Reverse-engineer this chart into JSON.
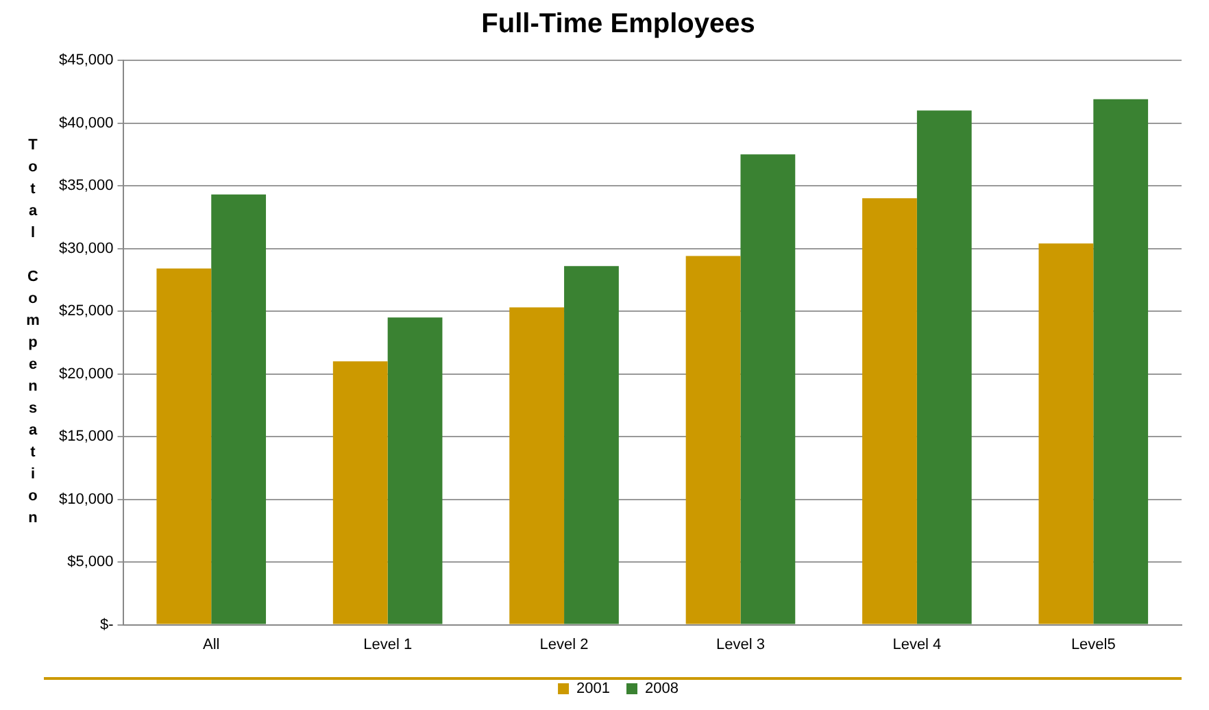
{
  "chart_data": {
    "type": "bar",
    "title": "Full-Time Employees",
    "ylabel": "Total Compensation",
    "categories": [
      "All",
      "Level 1",
      "Level 2",
      "Level 3",
      "Level 4",
      "Level5"
    ],
    "series": [
      {
        "name": "2001",
        "color": "#cc9900",
        "values": [
          28400,
          21000,
          25300,
          29400,
          34000,
          30400
        ]
      },
      {
        "name": "2008",
        "color": "#3a8232",
        "values": [
          34300,
          24500,
          28600,
          37500,
          41000,
          41900
        ]
      }
    ],
    "ylim": [
      0,
      45000
    ],
    "yticks": [
      {
        "value": 0,
        "label": "$-"
      },
      {
        "value": 5000,
        "label": "$5,000"
      },
      {
        "value": 10000,
        "label": "$10,000"
      },
      {
        "value": 15000,
        "label": "$15,000"
      },
      {
        "value": 20000,
        "label": "$20,000"
      },
      {
        "value": 25000,
        "label": "$25,000"
      },
      {
        "value": 30000,
        "label": "$30,000"
      },
      {
        "value": 35000,
        "label": "$35,000"
      },
      {
        "value": 40000,
        "label": "$40,000"
      },
      {
        "value": 45000,
        "label": "$45,000"
      }
    ],
    "grid": "y",
    "legend": "bottom"
  }
}
